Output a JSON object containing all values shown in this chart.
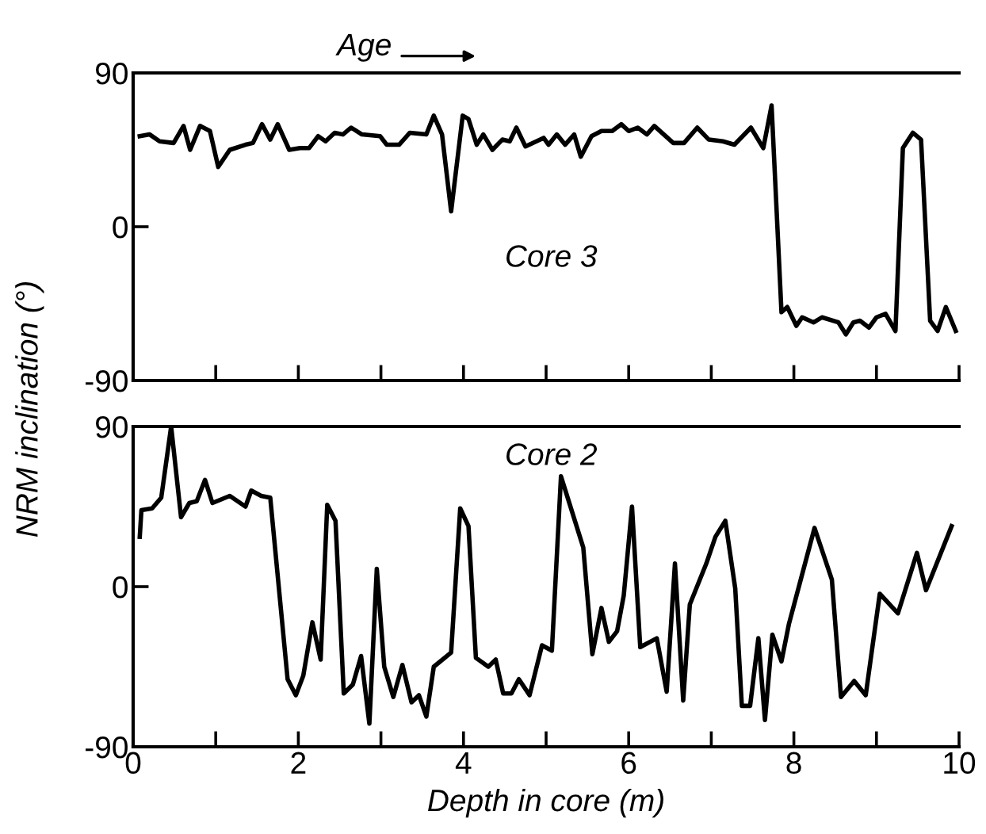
{
  "chart_data": [
    {
      "type": "line",
      "title": "Age",
      "annotations": [
        "Core 3"
      ],
      "ylabel": "NRM inclination (°)",
      "xlim": [
        0,
        10
      ],
      "xticks": [
        {
          "value": 0,
          "label": null
        },
        {
          "value": 1,
          "label": null
        },
        {
          "value": 2,
          "label": null
        },
        {
          "value": 3,
          "label": null
        },
        {
          "value": 4,
          "label": null
        },
        {
          "value": 5,
          "label": null
        },
        {
          "value": 6,
          "label": null
        },
        {
          "value": 7,
          "label": null
        },
        {
          "value": 8,
          "label": null
        },
        {
          "value": 9,
          "label": null
        },
        {
          "value": 10,
          "label": null
        }
      ],
      "ylim": [
        -90,
        90
      ],
      "yticks": [
        -90,
        0,
        90
      ],
      "tick_labels": "y",
      "grid": false,
      "legend": false,
      "marker": "none",
      "line_style": "solid",
      "series": [
        {
          "color": "#000000",
          "x": [
            0.08,
            0.2,
            0.32,
            0.49,
            0.61,
            0.69,
            0.81,
            0.93,
            1.03,
            1.17,
            1.36,
            1.45,
            1.56,
            1.66,
            1.75,
            1.89,
            2.02,
            2.13,
            2.24,
            2.33,
            2.44,
            2.54,
            2.64,
            2.77,
            2.99,
            3.07,
            3.22,
            3.35,
            3.55,
            3.64,
            3.74,
            3.85,
            3.99,
            4.06,
            4.16,
            4.24,
            4.35,
            4.47,
            4.56,
            4.64,
            4.75,
            4.97,
            5.03,
            5.13,
            5.23,
            5.34,
            5.42,
            5.55,
            5.67,
            5.8,
            5.91,
            6.0,
            6.11,
            6.22,
            6.31,
            6.54,
            6.67,
            6.83,
            6.97,
            7.14,
            7.28,
            7.48,
            7.63,
            7.73,
            7.85,
            7.92,
            8.03,
            8.1,
            8.24,
            8.34,
            8.54,
            8.63,
            8.72,
            8.8,
            8.91,
            9.0,
            9.11,
            9.23,
            9.32,
            9.44,
            9.54,
            9.65,
            9.74,
            9.84,
            9.96
          ],
          "values": [
            53,
            54,
            50,
            49,
            59,
            45,
            59,
            56,
            35,
            45,
            48,
            49,
            60,
            51,
            60,
            45,
            46,
            46,
            53,
            50,
            55,
            54,
            58,
            54,
            53,
            48,
            48,
            55,
            54,
            65,
            54,
            9,
            65,
            63,
            48,
            54,
            45,
            51,
            50,
            58,
            47,
            52,
            48,
            54,
            48,
            54,
            41,
            53,
            56,
            56,
            60,
            56,
            58,
            54,
            59,
            49,
            49,
            58,
            51,
            50,
            48,
            58,
            46,
            71,
            -50,
            -47,
            -58,
            -53,
            -56,
            -53,
            -56,
            -63,
            -56,
            -55,
            -59,
            -53,
            -51,
            -61,
            46,
            55,
            51,
            -55,
            -61,
            -47,
            -61
          ]
        }
      ]
    },
    {
      "type": "line",
      "annotations": [
        "Core 2"
      ],
      "xlabel": "Depth in core (m)",
      "xlim": [
        0,
        10
      ],
      "xticks": [
        0,
        {
          "value": 1,
          "label": null
        },
        2,
        {
          "value": 3,
          "label": null
        },
        4,
        {
          "value": 5,
          "label": null
        },
        6,
        {
          "value": 7,
          "label": null
        },
        8,
        {
          "value": 9,
          "label": null
        },
        10
      ],
      "ylim": [
        -90,
        90
      ],
      "yticks": [
        -90,
        0,
        90
      ],
      "grid": false,
      "legend": false,
      "marker": "none",
      "line_style": "solid",
      "series": [
        {
          "color": "#000000",
          "x": [
            0.08,
            0.1,
            0.23,
            0.34,
            0.46,
            0.58,
            0.68,
            0.77,
            0.87,
            0.96,
            1.17,
            1.36,
            1.43,
            1.55,
            1.66,
            1.87,
            1.97,
            2.06,
            2.17,
            2.27,
            2.35,
            2.45,
            2.55,
            2.66,
            2.76,
            2.86,
            2.95,
            3.04,
            3.15,
            3.26,
            3.37,
            3.46,
            3.55,
            3.64,
            3.85,
            3.96,
            4.06,
            4.15,
            4.3,
            4.39,
            4.48,
            4.58,
            4.67,
            4.8,
            4.95,
            5.07,
            5.18,
            5.45,
            5.56,
            5.67,
            5.76,
            5.86,
            5.94,
            6.04,
            6.14,
            6.34,
            6.46,
            6.56,
            6.66,
            6.74,
            6.94,
            7.05,
            7.17,
            7.29,
            7.37,
            7.47,
            7.57,
            7.65,
            7.74,
            7.85,
            7.94,
            8.25,
            8.46,
            8.57,
            8.73,
            8.87,
            9.04,
            9.26,
            9.49,
            9.6,
            9.91
          ],
          "values": [
            28,
            43,
            44,
            50,
            90,
            39,
            47,
            48,
            60,
            47,
            51,
            45,
            54,
            51,
            50,
            -52,
            -61,
            -50,
            -20,
            -41,
            46,
            37,
            -60,
            -55,
            -39,
            -77,
            10,
            -45,
            -62,
            -44,
            -65,
            -61,
            -73,
            -45,
            -37,
            44,
            34,
            -40,
            -45,
            -41,
            -60,
            -60,
            -52,
            -61,
            -33,
            -36,
            62,
            22,
            -38,
            -12,
            -31,
            -25,
            -5,
            45,
            -34,
            -29,
            -59,
            13,
            -64,
            -10,
            13,
            28,
            37,
            -1,
            -67,
            -67,
            -29,
            -75,
            -27,
            -42,
            -21,
            33,
            4,
            -62,
            -53,
            -61,
            -4,
            -15,
            19,
            -2,
            34
          ]
        }
      ]
    }
  ]
}
